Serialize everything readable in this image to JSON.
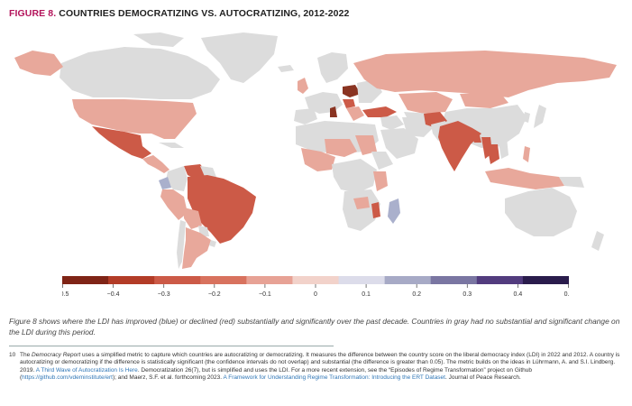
{
  "title": {
    "fig": "FIGURE 8.",
    "rest": "COUNTRIES DEMOCRATIZING VS. AUTOCRATIZING, 2012-2022"
  },
  "colors": {
    "no_change": "#dcdcdc",
    "strong_decline": "#cc5a47",
    "mild_decline": "#e8a89b",
    "decline": "#d8725e",
    "improve": "#aab0cc",
    "ocean": "#ffffff"
  },
  "legend": {
    "ticks": [
      "−0.5",
      "−0.4",
      "−0.3",
      "−0.2",
      "−0.1",
      "0",
      "0.1",
      "0.2",
      "0.3",
      "0.4",
      "0.5"
    ],
    "colors": [
      "#7f2416",
      "#b33c27",
      "#cc5a47",
      "#d8725e",
      "#e7a295",
      "#f2d2ca",
      "#dcdcea",
      "#a7aac6",
      "#7a76a2",
      "#523c7e",
      "#2a1c4c"
    ]
  },
  "caption": "Figure 8 shows where the LDI has improved (blue) or declined (red) substantially and significantly over the past decade. Countries in gray had no substantial and significant change on the LDI during this period.",
  "footnote": {
    "num": "10",
    "p1": "The ",
    "em": "Democracy Report",
    "p2": " uses a simplified metric to capture which countries are autocratizing or democratizing. It measures the difference between the country score on the liberal democracy index (LDI) in 2022 and 2012. A country is autocratizing or democratizing if the difference is statistically significant (the confidence intervals do not overlap) and substantial (the difference is greater than 0.05). The metric builds on the ideas in Lührmann, A. and S.I. Lindberg. 2019. ",
    "link1": "A Third Wave of Autocratization Is Here",
    "p3": ". Democratization 26(7), but is simplified and uses the LDI. For a more recent extension, see the “Episodes of Regime Transformation” project on Github (",
    "link2": "https://github.com/vdeminstitute/ert",
    "p4": "); and Maerz, S.F. et al. forthcoming 2023. ",
    "link3": "A Framework for Understanding Regime Transformation: Introducing the ERT Dataset",
    "p5": ". Journal of Peace Research."
  }
}
